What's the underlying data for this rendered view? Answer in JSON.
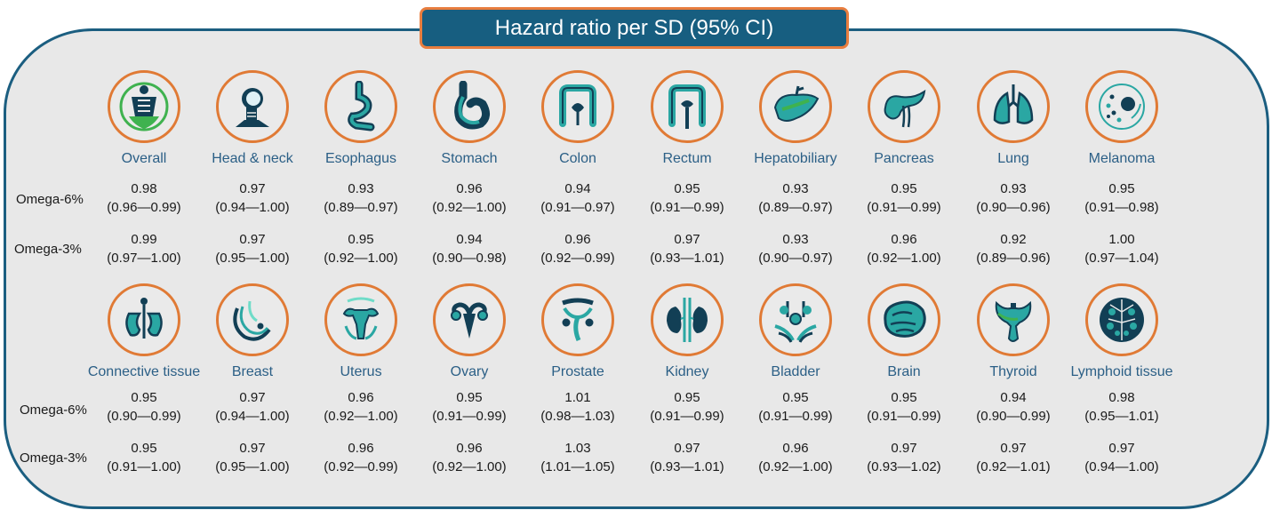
{
  "title": "Hazard ratio per SD (95% CI)",
  "row_labels": {
    "omega6": "Omega-6%",
    "omega3": "Omega-3%"
  },
  "colors": {
    "border": "#1b5e80",
    "title_fill": "#175e80",
    "accent_orange": "#e87d3e",
    "label_blue": "#2b5f86",
    "panel_bg": "#e8e8e8",
    "teal": "#2aa7a3",
    "dark_teal": "#123f55",
    "green": "#3fb24f"
  },
  "groups": [
    {
      "sites": [
        {
          "name": "Overall",
          "icon": "body-torso-icon",
          "omega6": {
            "hr": "0.98",
            "ci": "(0.96—0.99)"
          },
          "omega3": {
            "hr": "0.99",
            "ci": "(0.97—1.00)"
          }
        },
        {
          "name": "Head & neck",
          "icon": "head-neck-icon",
          "omega6": {
            "hr": "0.97",
            "ci": "(0.94—1.00)"
          },
          "omega3": {
            "hr": "0.97",
            "ci": "(0.95—1.00)"
          }
        },
        {
          "name": "Esophagus",
          "icon": "esophagus-icon",
          "omega6": {
            "hr": "0.93",
            "ci": "(0.89—0.97)"
          },
          "omega3": {
            "hr": "0.95",
            "ci": "(0.92—1.00)"
          }
        },
        {
          "name": "Stomach",
          "icon": "stomach-icon",
          "omega6": {
            "hr": "0.96",
            "ci": "(0.92—1.00)"
          },
          "omega3": {
            "hr": "0.94",
            "ci": "(0.90—0.98)"
          }
        },
        {
          "name": "Colon",
          "icon": "colon-icon",
          "omega6": {
            "hr": "0.94",
            "ci": "(0.91—0.97)"
          },
          "omega3": {
            "hr": "0.96",
            "ci": "(0.92—0.99)"
          }
        },
        {
          "name": "Rectum",
          "icon": "rectum-icon",
          "omega6": {
            "hr": "0.95",
            "ci": "(0.91—0.99)"
          },
          "omega3": {
            "hr": "0.97",
            "ci": "(0.93—1.01)"
          }
        },
        {
          "name": "Hepatobiliary",
          "icon": "liver-icon",
          "omega6": {
            "hr": "0.93",
            "ci": "(0.89—0.97)"
          },
          "omega3": {
            "hr": "0.93",
            "ci": "(0.90—0.97)"
          }
        },
        {
          "name": "Pancreas",
          "icon": "pancreas-icon",
          "omega6": {
            "hr": "0.95",
            "ci": "(0.91—0.99)"
          },
          "omega3": {
            "hr": "0.96",
            "ci": "(0.92—1.00)"
          }
        },
        {
          "name": "Lung",
          "icon": "lungs-icon",
          "omega6": {
            "hr": "0.93",
            "ci": "(0.90—0.96)"
          },
          "omega3": {
            "hr": "0.92",
            "ci": "(0.89—0.96)"
          }
        },
        {
          "name": "Melanoma",
          "icon": "skin-cells-icon",
          "omega6": {
            "hr": "0.95",
            "ci": "(0.91—0.98)"
          },
          "omega3": {
            "hr": "1.00",
            "ci": "(0.97—1.04)"
          }
        }
      ]
    },
    {
      "sites": [
        {
          "name": "Connective tissue",
          "icon": "connective-tissue-icon",
          "omega6": {
            "hr": "0.95",
            "ci": "(0.90—0.99)"
          },
          "omega3": {
            "hr": "0.95",
            "ci": "(0.91—1.00)"
          }
        },
        {
          "name": "Breast",
          "icon": "breast-icon",
          "omega6": {
            "hr": "0.97",
            "ci": "(0.94—1.00)"
          },
          "omega3": {
            "hr": "0.97",
            "ci": "(0.95—1.00)"
          }
        },
        {
          "name": "Uterus",
          "icon": "uterus-icon",
          "omega6": {
            "hr": "0.96",
            "ci": "(0.92—1.00)"
          },
          "omega3": {
            "hr": "0.96",
            "ci": "(0.92—0.99)"
          }
        },
        {
          "name": "Ovary",
          "icon": "ovary-icon",
          "omega6": {
            "hr": "0.95",
            "ci": "(0.91—0.99)"
          },
          "omega3": {
            "hr": "0.96",
            "ci": "(0.92—1.00)"
          }
        },
        {
          "name": "Prostate",
          "icon": "prostate-icon",
          "omega6": {
            "hr": "1.01",
            "ci": "(0.98—1.03)"
          },
          "omega3": {
            "hr": "1.03",
            "ci": "(1.01—1.05)"
          }
        },
        {
          "name": "Kidney",
          "icon": "kidney-icon",
          "omega6": {
            "hr": "0.95",
            "ci": "(0.91—0.99)"
          },
          "omega3": {
            "hr": "0.97",
            "ci": "(0.93—1.01)"
          }
        },
        {
          "name": "Bladder",
          "icon": "bladder-icon",
          "omega6": {
            "hr": "0.95",
            "ci": "(0.91—0.99)"
          },
          "omega3": {
            "hr": "0.96",
            "ci": "(0.92—1.00)"
          }
        },
        {
          "name": "Brain",
          "icon": "brain-icon",
          "omega6": {
            "hr": "0.95",
            "ci": "(0.91—0.99)"
          },
          "omega3": {
            "hr": "0.97",
            "ci": "(0.93—1.02)"
          }
        },
        {
          "name": "Thyroid",
          "icon": "thyroid-icon",
          "omega6": {
            "hr": "0.94",
            "ci": "(0.90—0.99)"
          },
          "omega3": {
            "hr": "0.97",
            "ci": "(0.92—1.01)"
          }
        },
        {
          "name": "Lymphoid tissue",
          "icon": "lymphoid-tissue-icon",
          "omega6": {
            "hr": "0.98",
            "ci": "(0.95—1.01)"
          },
          "omega3": {
            "hr": "0.97",
            "ci": "(0.94—1.00)"
          }
        }
      ]
    }
  ]
}
